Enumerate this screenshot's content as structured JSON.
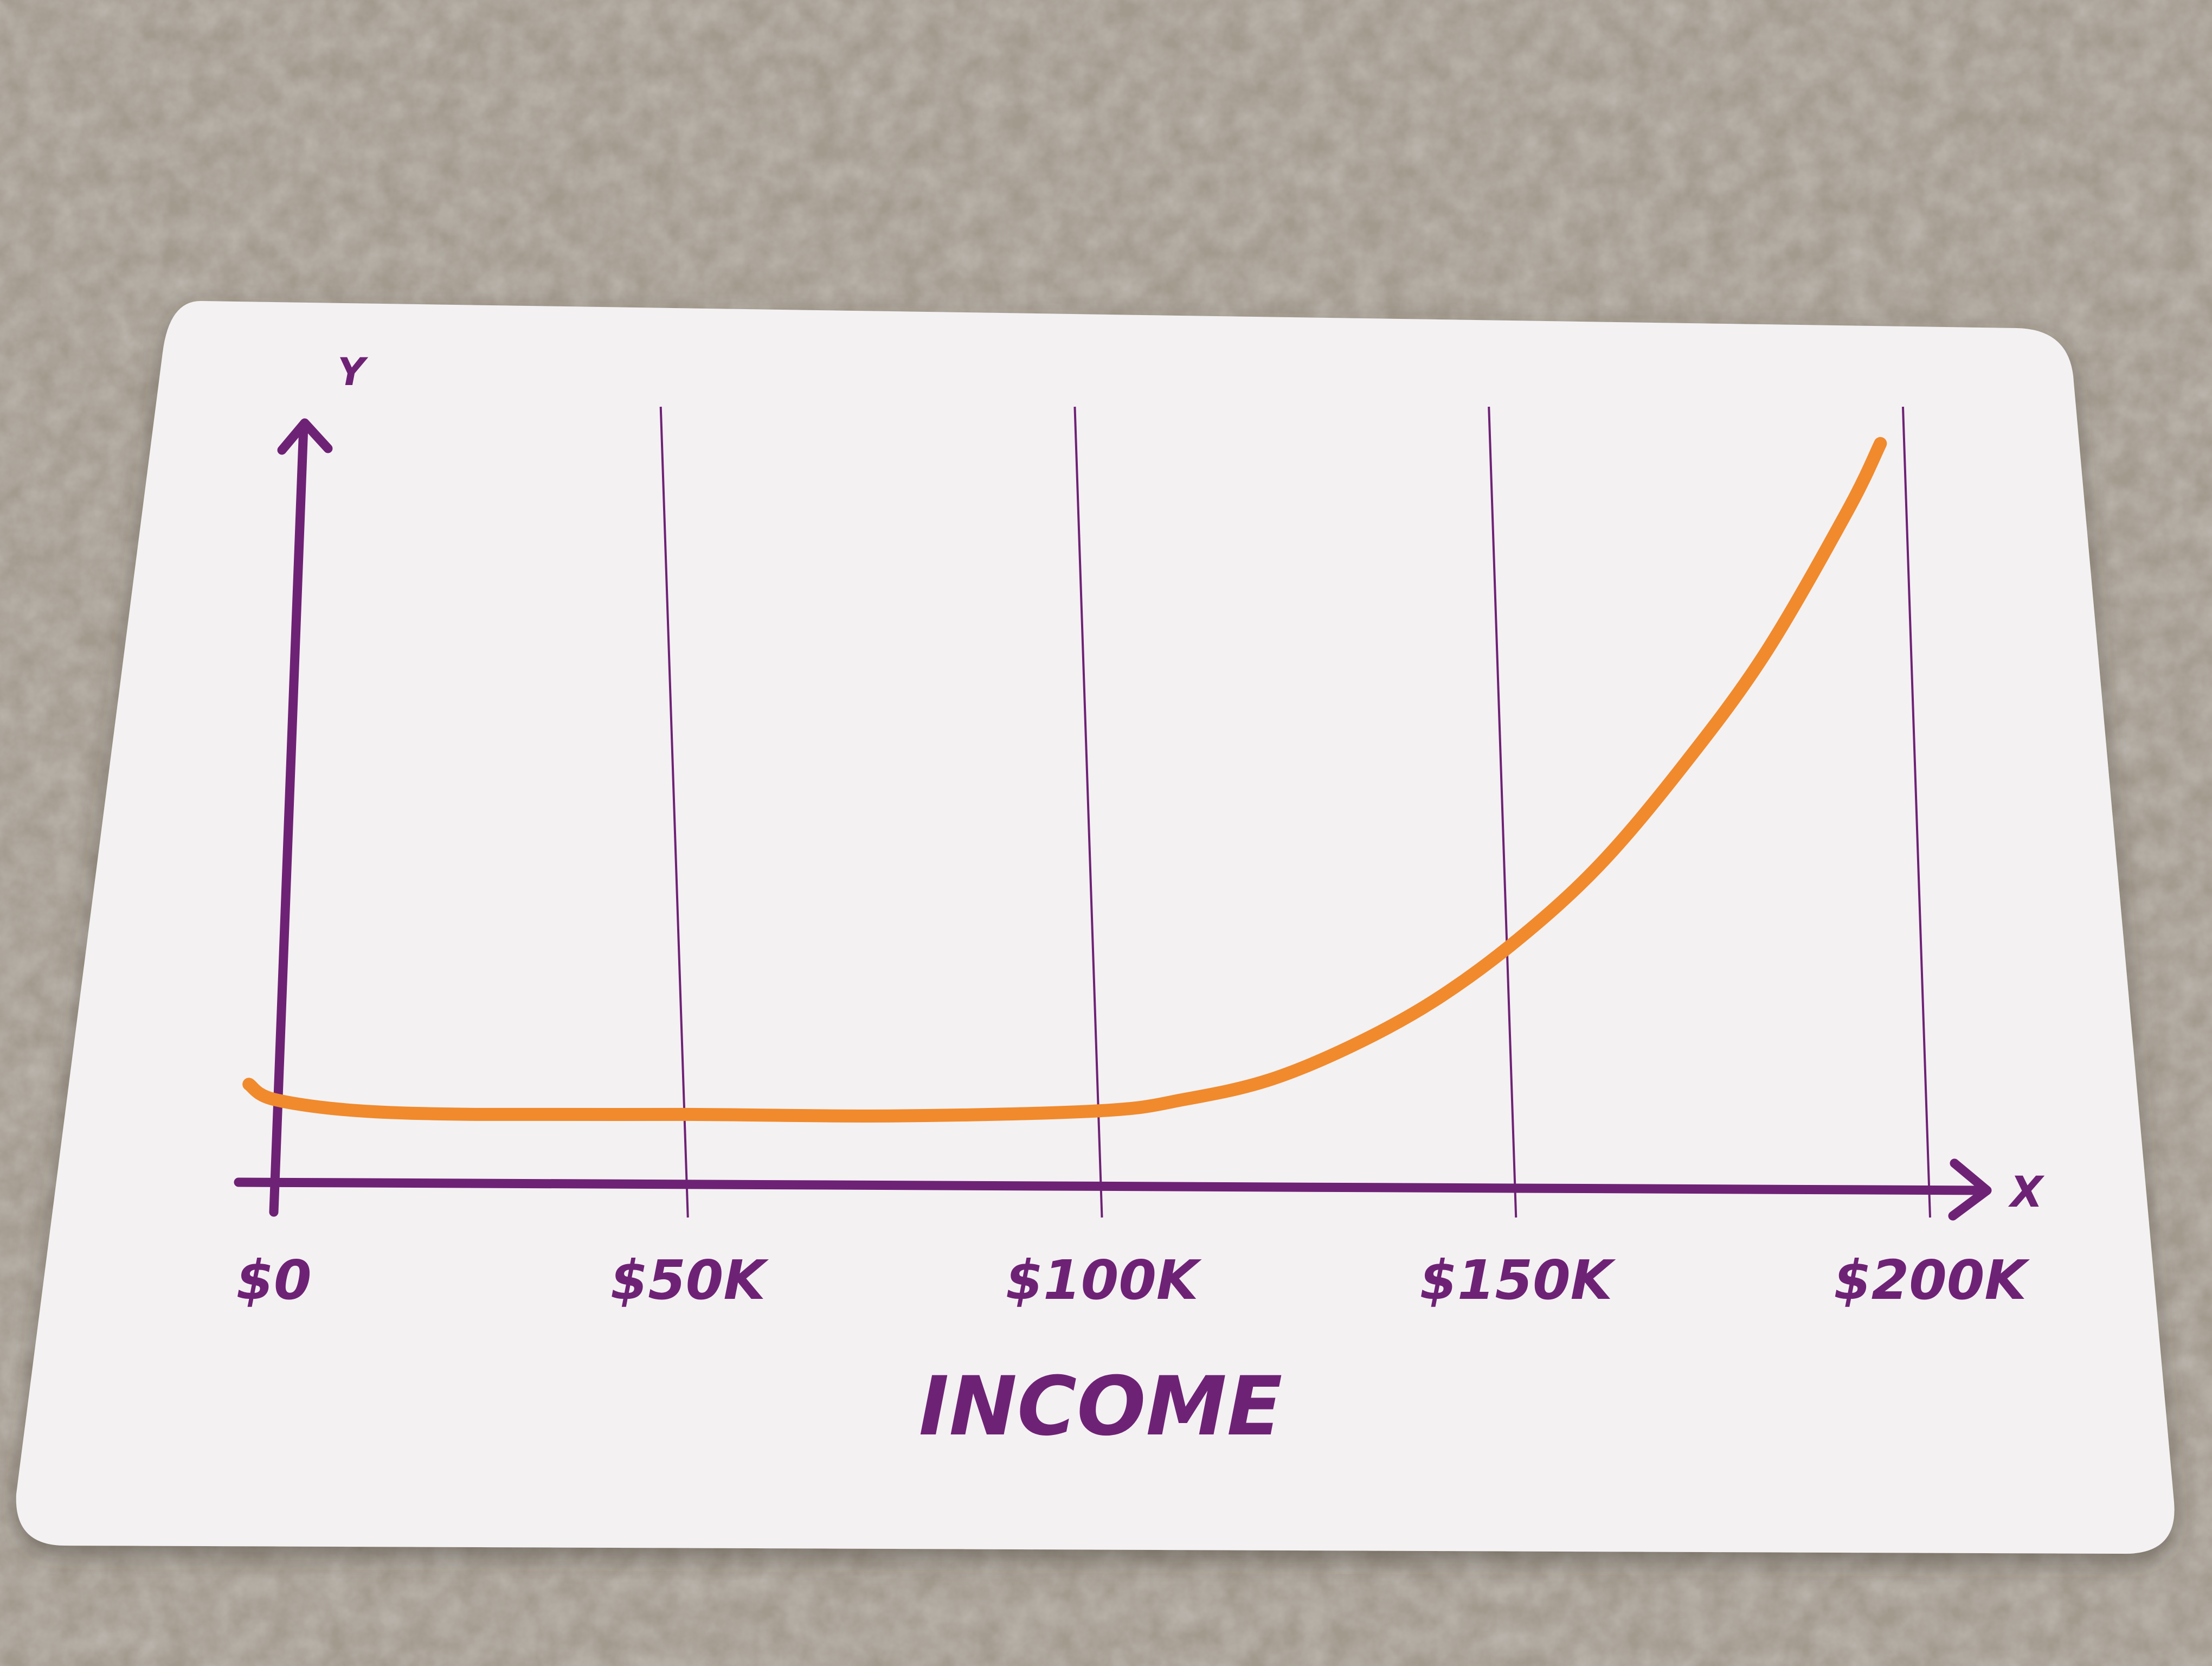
{
  "colors": {
    "background": "#a39a8e",
    "card": "#f4f1f3",
    "axis": "#6e2275",
    "gridline": "#6e2275",
    "curve": "#f08a2c"
  },
  "chart_data": {
    "type": "line",
    "title": "",
    "xlabel": "INCOME",
    "ylabel": "",
    "x_axis_letter": "X",
    "y_axis_letter": "Y",
    "x_tick_labels": [
      "$0",
      "$50K",
      "$100K",
      "$150K",
      "$200K"
    ],
    "x_tick_values": [
      0,
      50000,
      100000,
      150000,
      200000
    ],
    "xlim": [
      0,
      200000
    ],
    "ylim": [
      0,
      1
    ],
    "y_ticks_shown": false,
    "grid": "vertical lines at tick values",
    "legend": "none",
    "series": [
      {
        "x": [
          -3000,
          0,
          10000,
          25000,
          50000,
          75000,
          100000,
          110000,
          120000,
          130000,
          140000,
          150000,
          160000,
          170000,
          180000,
          190000,
          194000
        ],
        "y": [
          0.13,
          0.11,
          0.095,
          0.09,
          0.09,
          0.088,
          0.095,
          0.11,
          0.135,
          0.18,
          0.24,
          0.32,
          0.42,
          0.55,
          0.7,
          0.89,
          0.98
        ]
      }
    ]
  }
}
